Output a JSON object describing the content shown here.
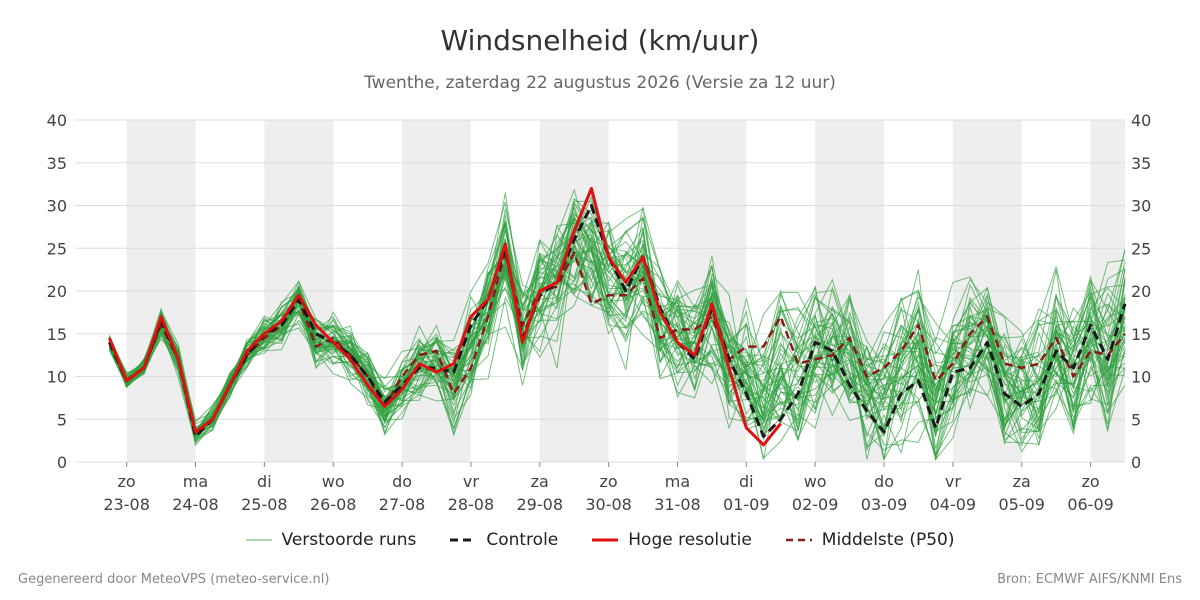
{
  "title": "Windsnelheid (km/uur)",
  "subtitle": "Twenthe, zaterdag 22 augustus 2026 (Versie za 12 uur)",
  "footer_left": "Gegenereerd door MeteoVPS (meteo-service.nl)",
  "footer_right": "Bron: ECMWF AIFS/KNMI Ens",
  "legend": {
    "perturbed": "Verstoorde runs",
    "control": "Controle",
    "hires": "Hoge resolutie",
    "median": "Middelste (P50)"
  },
  "colors": {
    "perturbed": "#2e9e3e",
    "control": "#1a1a1a",
    "hires": "#e01010",
    "median": "#8b1a1a",
    "night_band": "#eeeeee",
    "grid": "#dddddd"
  },
  "chart_data": {
    "type": "line",
    "title": "Windsnelheid (km/uur)",
    "ylim": [
      0,
      40
    ],
    "yticks": [
      0,
      5,
      10,
      15,
      20,
      25,
      30,
      35,
      40
    ],
    "xlim_days": [
      -0.75,
      14.5
    ],
    "day_labels": [
      {
        "day": "zo",
        "date": "23-08"
      },
      {
        "day": "ma",
        "date": "24-08"
      },
      {
        "day": "di",
        "date": "25-08"
      },
      {
        "day": "wo",
        "date": "26-08"
      },
      {
        "day": "do",
        "date": "27-08"
      },
      {
        "day": "vr",
        "date": "28-08"
      },
      {
        "day": "za",
        "date": "29-08"
      },
      {
        "day": "zo",
        "date": "30-08"
      },
      {
        "day": "ma",
        "date": "31-08"
      },
      {
        "day": "di",
        "date": "01-09"
      },
      {
        "day": "wo",
        "date": "02-09"
      },
      {
        "day": "do",
        "date": "03-09"
      },
      {
        "day": "vr",
        "date": "04-09"
      },
      {
        "day": "za",
        "date": "05-09"
      },
      {
        "day": "zo",
        "date": "06-09"
      }
    ],
    "legend_position": "bottom",
    "grid": true,
    "hires": {
      "name": "Hoge resolutie",
      "x": [
        -0.25,
        0,
        0.25,
        0.5,
        0.75,
        1,
        1.25,
        1.5,
        1.75,
        2,
        2.25,
        2.5,
        2.75,
        3,
        3.25,
        3.5,
        3.75,
        4,
        4.25,
        4.5,
        4.75,
        5,
        5.25,
        5.5,
        5.75,
        6,
        6.25,
        6.5,
        6.75,
        7,
        7.25,
        7.5,
        7.75,
        8,
        8.25,
        8.5,
        8.75,
        9,
        9.25,
        9.5
      ],
      "y": [
        14.5,
        9.5,
        11,
        17,
        12,
        3.5,
        5,
        9,
        13,
        15,
        16.5,
        19.5,
        16,
        14,
        12,
        9,
        6.5,
        8.5,
        11.5,
        10.5,
        11.5,
        17,
        19,
        25.5,
        14,
        20,
        21,
        27,
        32,
        24,
        21,
        24,
        17.5,
        14,
        12.5,
        18.5,
        11,
        4,
        2,
        4.5
      ]
    },
    "control": {
      "name": "Controle",
      "x": [
        -0.25,
        0,
        0.25,
        0.5,
        0.75,
        1,
        1.25,
        1.5,
        1.75,
        2,
        2.25,
        2.5,
        2.75,
        3,
        3.25,
        3.5,
        3.75,
        4,
        4.25,
        4.5,
        4.75,
        5,
        5.25,
        5.5,
        5.75,
        6,
        6.25,
        6.5,
        6.75,
        7,
        7.25,
        7.5,
        7.75,
        8,
        8.25,
        8.5,
        8.75,
        9,
        9.25,
        9.5,
        9.75,
        10,
        10.25,
        10.5,
        10.75,
        11,
        11.25,
        11.5,
        11.75,
        12,
        12.25,
        12.5,
        12.75,
        13,
        13.25,
        13.5,
        13.75,
        14,
        14.25,
        14.5
      ],
      "y": [
        14,
        9.5,
        11,
        16.5,
        12,
        3,
        5,
        9,
        12.5,
        15,
        16,
        19,
        15,
        14,
        12.5,
        10,
        7,
        9,
        11,
        11,
        10.5,
        16,
        19,
        25,
        14.5,
        19.5,
        21,
        26,
        30,
        24,
        20,
        24,
        18,
        14,
        12,
        18,
        12,
        8,
        3,
        5,
        8,
        14,
        13,
        9,
        6,
        3.5,
        8,
        9.5,
        4,
        10.5,
        11,
        14,
        8,
        6.5,
        8,
        13,
        11,
        16,
        12,
        18.5
      ]
    },
    "median": {
      "name": "Middelste (P50)",
      "x": [
        -0.25,
        0,
        0.25,
        0.5,
        0.75,
        1,
        1.25,
        1.5,
        1.75,
        2,
        2.25,
        2.5,
        2.75,
        3,
        3.25,
        3.5,
        3.75,
        4,
        4.25,
        4.5,
        4.75,
        5,
        5.25,
        5.5,
        5.75,
        6,
        6.25,
        6.5,
        6.75,
        7,
        7.25,
        7.5,
        7.75,
        8,
        8.25,
        8.5,
        8.75,
        9,
        9.25,
        9.5,
        9.75,
        10,
        10.25,
        10.5,
        10.75,
        11,
        11.25,
        11.5,
        11.75,
        12,
        12.25,
        12.5,
        12.75,
        13,
        13.25,
        13.5,
        13.75,
        14,
        14.25,
        14.5
      ],
      "y": [
        14,
        9.5,
        11,
        16,
        12,
        3.5,
        5,
        9,
        12.5,
        14.5,
        16,
        19,
        13.5,
        14.5,
        12.5,
        10,
        6.5,
        10,
        12.5,
        13,
        8,
        11,
        17,
        24.5,
        16,
        20,
        20.5,
        24.5,
        18.5,
        19.5,
        19.5,
        21.5,
        14.5,
        15.5,
        15.5,
        17,
        12,
        13.5,
        13.5,
        17,
        11.5,
        12,
        12.5,
        14.5,
        10,
        11,
        13,
        16,
        9.5,
        11.5,
        15,
        17,
        11.5,
        11,
        11.5,
        14.5,
        10,
        13,
        12.5,
        15
      ]
    },
    "perturbed": {
      "name": "Verstoorde runs",
      "count": 50,
      "x_start": -0.25,
      "x_step": 0.25,
      "spread_profile": [
        1,
        1,
        1,
        1.5,
        1.5,
        1,
        1.5,
        1.5,
        2,
        2,
        2.5,
        2.5,
        3,
        3,
        3,
        3,
        3.5,
        3.5,
        4,
        4,
        4.5,
        5,
        5.5,
        6,
        6.5,
        6.5,
        6.5,
        6.5,
        6.5,
        6.5,
        6.5,
        6.5,
        6.5,
        6.5,
        6.5,
        7,
        7,
        7,
        7,
        7,
        7,
        7,
        7,
        7,
        7,
        7,
        7,
        7,
        7,
        7,
        7,
        7,
        7,
        7,
        7.5,
        7.5,
        7.5,
        7.5,
        7.5,
        7.5
      ]
    }
  }
}
